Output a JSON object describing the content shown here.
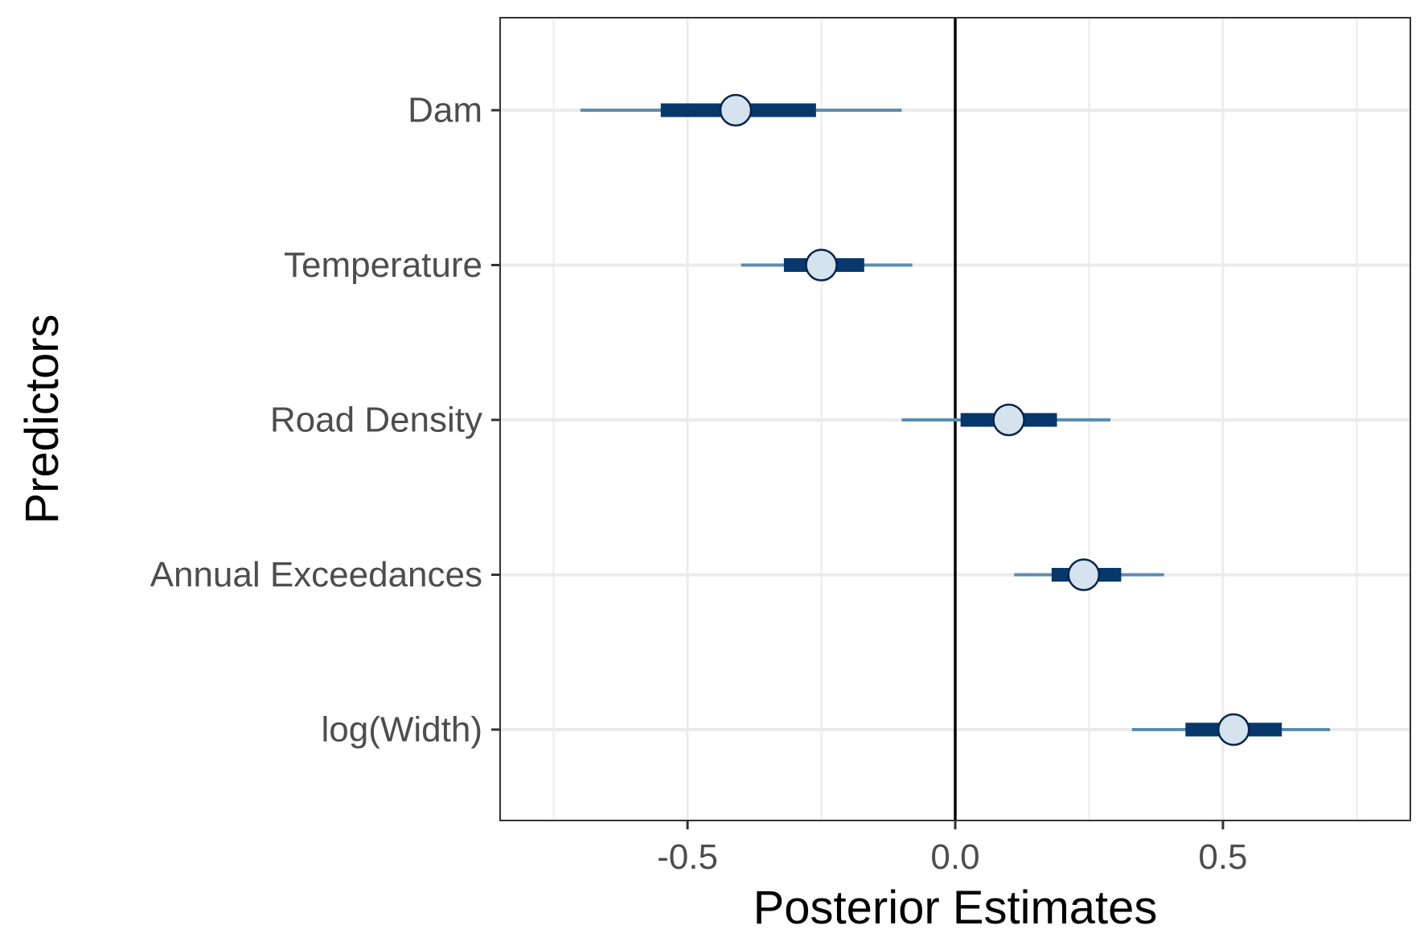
{
  "chart_data": {
    "type": "interval",
    "xlabel": "Posterior Estimates",
    "ylabel": "Predictors",
    "xlim": [
      -0.85,
      0.85
    ],
    "x_ticks": [
      -0.5,
      0.0,
      0.5
    ],
    "x_tick_labels": [
      "-0.5",
      "0.0",
      "0.5"
    ],
    "x_minor_gridlines": [
      -0.75,
      -0.25,
      0.25,
      0.75
    ],
    "reference_line": 0.0,
    "grid": true,
    "categories": [
      "Dam",
      "Temperature",
      "Road Density",
      "Annual Exceedances",
      "log(Width)"
    ],
    "estimates": [
      {
        "name": "Dam",
        "median": -0.41,
        "inner": [
          -0.55,
          -0.26
        ],
        "outer": [
          -0.7,
          -0.1
        ]
      },
      {
        "name": "Temperature",
        "median": -0.25,
        "inner": [
          -0.32,
          -0.17
        ],
        "outer": [
          -0.4,
          -0.08
        ]
      },
      {
        "name": "Road Density",
        "median": 0.1,
        "inner": [
          0.01,
          0.19
        ],
        "outer": [
          -0.1,
          0.29
        ]
      },
      {
        "name": "Annual Exceedances",
        "median": 0.24,
        "inner": [
          0.18,
          0.31
        ],
        "outer": [
          0.11,
          0.39
        ]
      },
      {
        "name": "log(Width)",
        "median": 0.52,
        "inner": [
          0.43,
          0.61
        ],
        "outer": [
          0.33,
          0.7
        ]
      }
    ],
    "colors": {
      "outer_interval": "#5b8db0",
      "inner_interval": "#08386b",
      "point_fill": "#d4e3ee",
      "point_stroke": "#08244d",
      "grid": "#ebebeb",
      "panel_border": "#333333",
      "reference_line": "#000000"
    }
  }
}
